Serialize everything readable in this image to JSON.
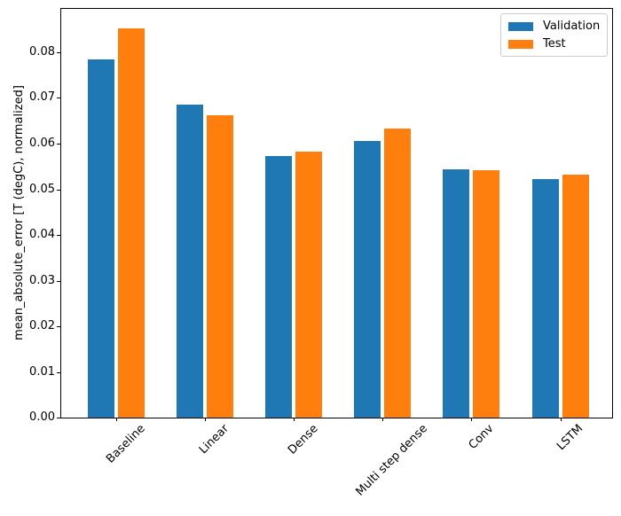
{
  "chart_data": {
    "type": "bar",
    "title": "",
    "xlabel": "",
    "ylabel": "mean_absolute_error [T (degC), normalized]",
    "categories": [
      "Baseline",
      "Linear",
      "Dense",
      "Multi step dense",
      "Conv",
      "LSTM"
    ],
    "series": [
      {
        "name": "Validation",
        "color": "#1f77b4",
        "values": [
          0.0785,
          0.0686,
          0.0572,
          0.0606,
          0.0544,
          0.0522
        ]
      },
      {
        "name": "Test",
        "color": "#ff7f0e",
        "values": [
          0.0852,
          0.0663,
          0.0583,
          0.0633,
          0.0542,
          0.0533
        ]
      }
    ],
    "ylim": [
      0,
      0.0895
    ],
    "yticks": [
      0.0,
      0.01,
      0.02,
      0.03,
      0.04,
      0.05,
      0.06,
      0.07,
      0.08
    ],
    "ytick_labels": [
      "0.00",
      "0.01",
      "0.02",
      "0.03",
      "0.04",
      "0.05",
      "0.06",
      "0.07",
      "0.08"
    ],
    "bar_width": 0.3,
    "bar_offsets": [
      -0.17,
      0.17
    ],
    "x_rotation": 45,
    "grid": false,
    "legend_position": "upper right",
    "axis_color": "#000000",
    "legend_border_color": "#cccccc",
    "background_color": "#ffffff"
  }
}
